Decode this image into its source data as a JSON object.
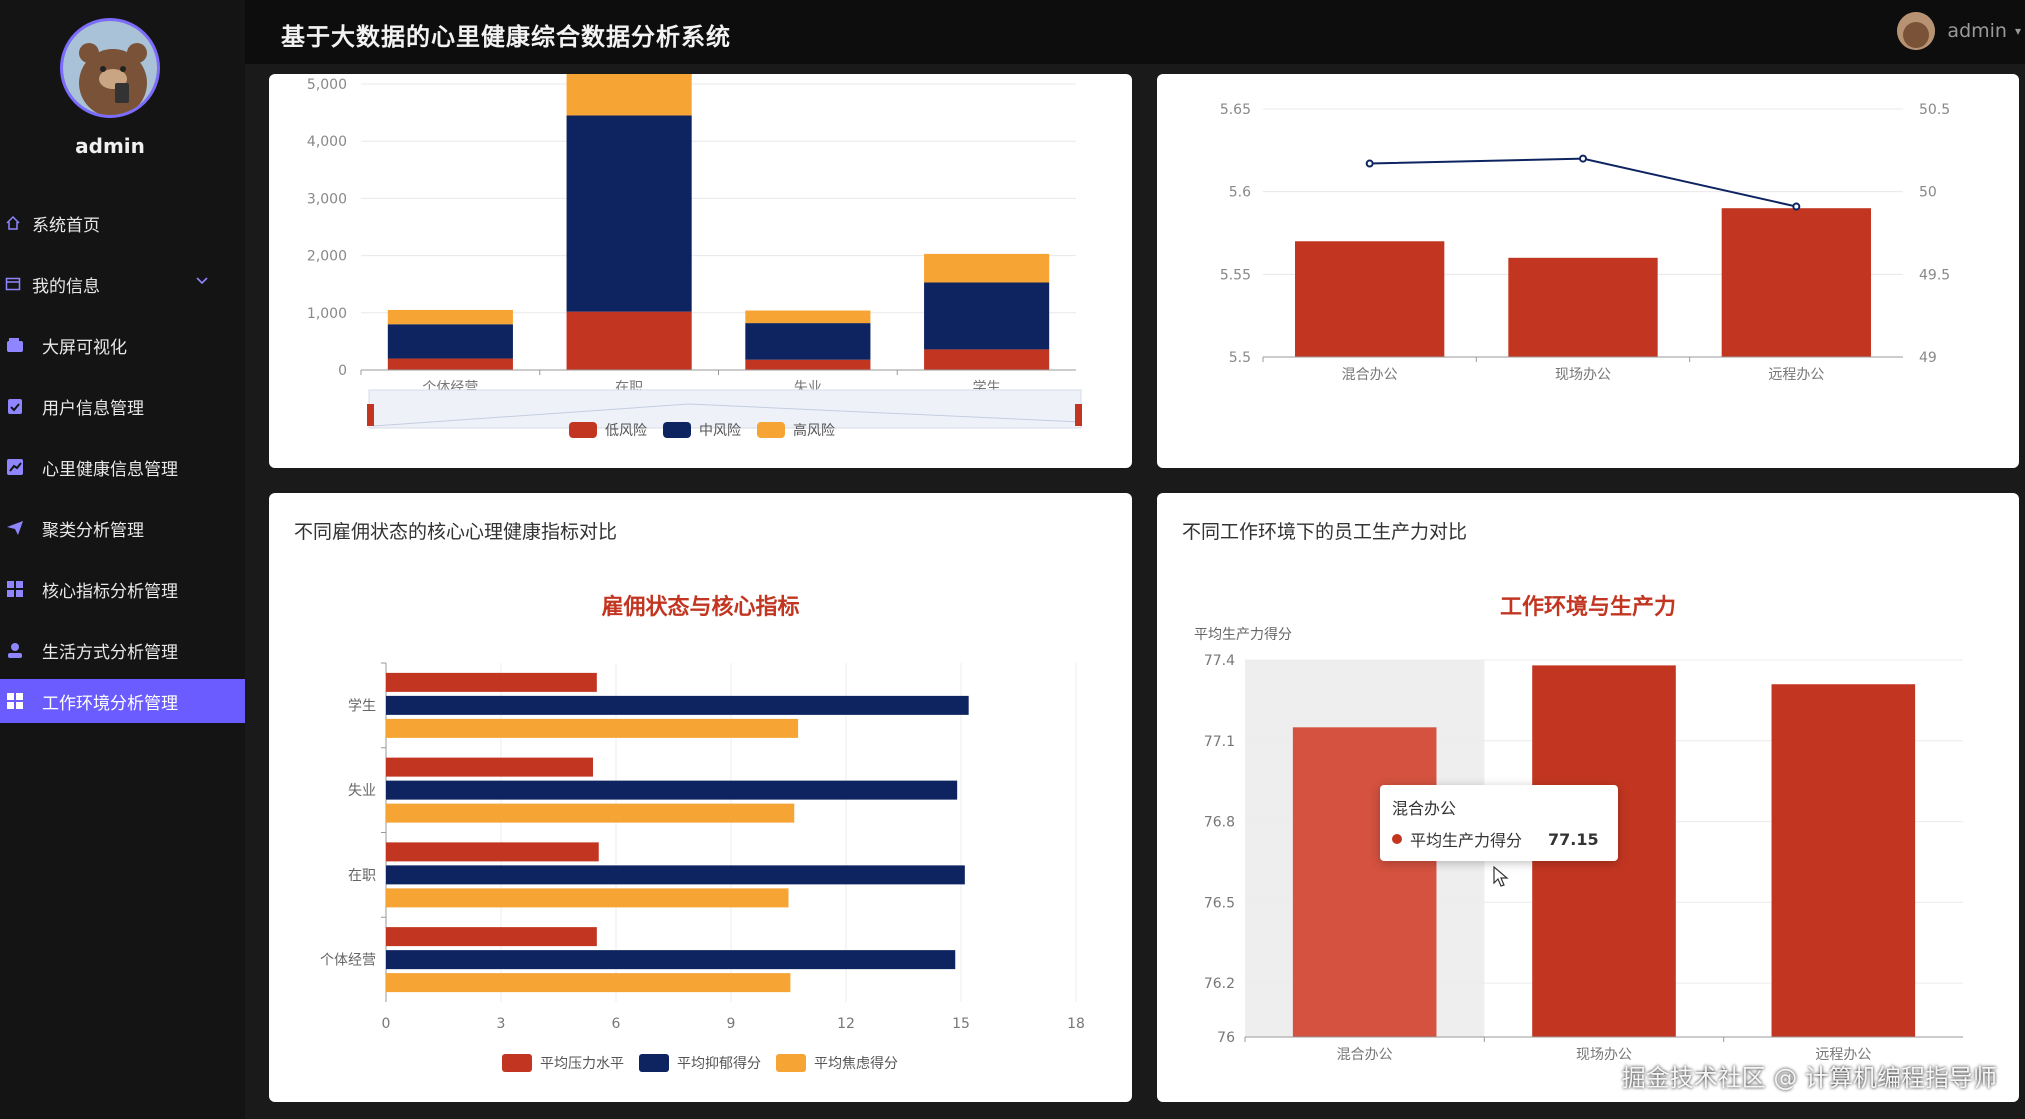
{
  "app": {
    "title": "基于大数据的心里健康综合数据分析系统"
  },
  "user": {
    "name": "admin",
    "header_name": "admin"
  },
  "sidebar": {
    "items": [
      {
        "label": "系统首页",
        "icon": "home-icon"
      },
      {
        "label": "我的信息",
        "icon": "profile-icon"
      },
      {
        "label": "大屏可视化",
        "icon": "wallet-icon"
      },
      {
        "label": "用户信息管理",
        "icon": "clipboard-icon"
      },
      {
        "label": "心里健康信息管理",
        "icon": "chart-icon"
      },
      {
        "label": "聚类分析管理",
        "icon": "send-icon"
      },
      {
        "label": "核心指标分析管理",
        "icon": "grid-icon"
      },
      {
        "label": "生活方式分析管理",
        "icon": "user-icon"
      },
      {
        "label": "工作环境分析管理",
        "icon": "grid-icon"
      }
    ],
    "active_index": 8
  },
  "panels": {
    "bottom_left": {
      "title": "不同雇佣状态的核心心理健康指标对比"
    },
    "bottom_right": {
      "title": "不同工作环境下的员工生产力对比"
    }
  },
  "tooltip": {
    "category": "混合办公",
    "series": "平均生产力得分",
    "value": "77.15"
  },
  "watermark": "掘金技术社区 @ 计算机编程指导师",
  "colors": {
    "red": "#c23621",
    "navy": "#0e2461",
    "orange": "#f6a433",
    "accent": "#6b5cff"
  },
  "chart_data": [
    {
      "type": "bar",
      "stacked": true,
      "categories": [
        "个体经营",
        "在职",
        "失业",
        "学生"
      ],
      "series": [
        {
          "name": "低风险",
          "values": [
            200,
            1020,
            180,
            360
          ]
        },
        {
          "name": "中风险",
          "values": [
            600,
            3430,
            640,
            1170
          ]
        },
        {
          "name": "高风险",
          "values": [
            250,
            800,
            220,
            500
          ]
        }
      ],
      "ylim": [
        0,
        5000
      ],
      "yticks": [
        "0",
        "1,000",
        "2,000",
        "3,000",
        "4,000",
        "5,000"
      ],
      "legend": "bottom"
    },
    {
      "type": "bar",
      "categories": [
        "混合办公",
        "现场办公",
        "远程办公"
      ],
      "series": [
        {
          "values": [
            5.57,
            5.56,
            5.59
          ]
        },
        {
          "type": "line",
          "values": [
            50.17,
            50.2,
            49.91
          ]
        }
      ],
      "ylim": [
        5.5,
        5.65
      ],
      "y2lim": [
        49,
        50.5
      ],
      "yticks": [
        "5.5",
        "5.55",
        "5.6",
        "5.65"
      ],
      "y2ticks": [
        "49",
        "49.5",
        "50",
        "50.5"
      ]
    },
    {
      "type": "bar",
      "orientation": "horizontal",
      "title": "雇佣状态与核心指标",
      "categories": [
        "学生",
        "失业",
        "在职",
        "个体经营"
      ],
      "series": [
        {
          "name": "平均压力水平",
          "values": [
            5.5,
            5.4,
            5.55,
            5.5
          ]
        },
        {
          "name": "平均抑郁得分",
          "values": [
            15.2,
            14.9,
            15.1,
            14.85
          ]
        },
        {
          "name": "平均焦虑得分",
          "values": [
            10.75,
            10.65,
            10.5,
            10.55
          ]
        }
      ],
      "xlim": [
        0,
        18
      ],
      "xticks": [
        "0",
        "3",
        "6",
        "9",
        "12",
        "15",
        "18"
      ],
      "legend": "bottom"
    },
    {
      "type": "bar",
      "title": "工作环境与生产力",
      "ylabel": "平均生产力得分",
      "categories": [
        "混合办公",
        "现场办公",
        "远程办公"
      ],
      "series": [
        {
          "name": "平均生产力得分",
          "values": [
            77.15,
            77.38,
            77.31
          ]
        }
      ],
      "ylim": [
        76,
        77.4
      ],
      "yticks": [
        "76",
        "76.2",
        "76.5",
        "76.8",
        "77.1",
        "77.4"
      ]
    }
  ]
}
